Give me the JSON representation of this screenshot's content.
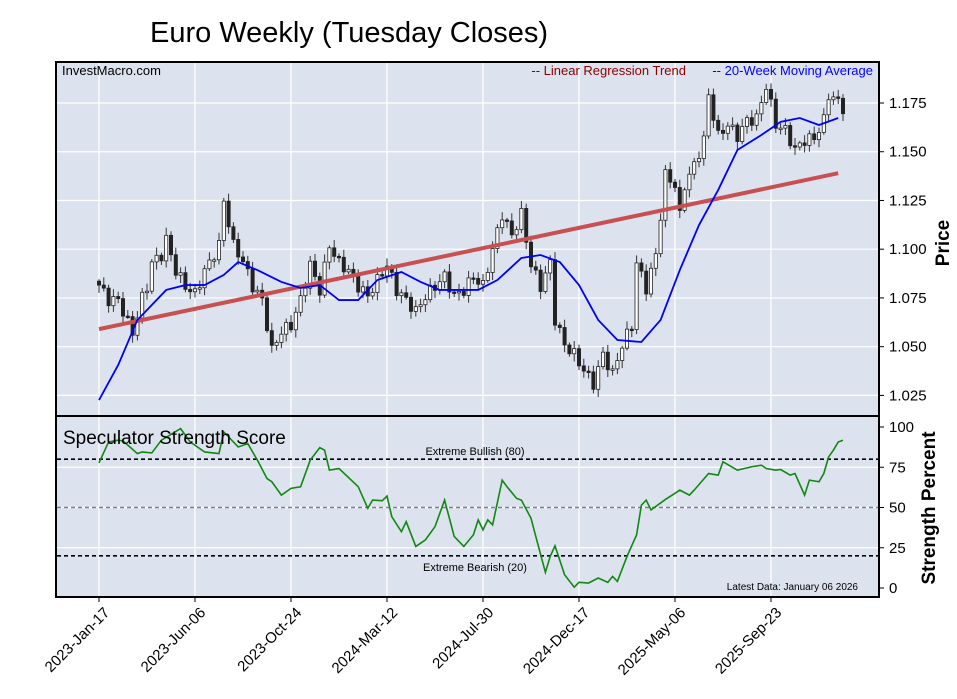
{
  "chart_data": [
    {
      "type": "candlestick",
      "title": "Euro Weekly (Tuesday Closes)",
      "watermark": "InvestMacro.com",
      "ylabel": "Price",
      "ylim": [
        1.015,
        1.195
      ],
      "yticks": [
        "1.175",
        "1.150",
        "1.125",
        "1.100",
        "1.075",
        "1.050",
        "1.025"
      ],
      "xticks": [
        {
          "week": 0,
          "label": "2023-Jan-17"
        },
        {
          "week": 20,
          "label": "2023-Jun-06"
        },
        {
          "week": 40,
          "label": "2023-Oct-24"
        },
        {
          "week": 60,
          "label": "2024-Mar-12"
        },
        {
          "week": 80,
          "label": "2024-Jul-30"
        },
        {
          "week": 100,
          "label": "2024-Dec-17"
        },
        {
          "week": 120,
          "label": "2025-May-06"
        },
        {
          "week": 140,
          "label": "2025-Sep-23"
        }
      ],
      "legend": [
        {
          "label": "-- Linear Regression Trend",
          "color": "#8b0000"
        },
        {
          "label": "-- 20-Week Moving Average",
          "color": "#0000ff"
        }
      ],
      "close_keypoints": [
        [
          0,
          1.0816
        ],
        [
          2,
          1.074
        ],
        [
          4,
          1.074
        ],
        [
          6,
          1.0626
        ],
        [
          7,
          1.057
        ],
        [
          9,
          1.075
        ],
        [
          10,
          1.081
        ],
        [
          11,
          1.093
        ],
        [
          13,
          1.097
        ],
        [
          14,
          1.105
        ],
        [
          16,
          1.089
        ],
        [
          18,
          1.081
        ],
        [
          20,
          1.077
        ],
        [
          22,
          1.089
        ],
        [
          23,
          1.093
        ],
        [
          25,
          1.102
        ],
        [
          26,
          1.125
        ],
        [
          28,
          1.102
        ],
        [
          30,
          1.094
        ],
        [
          32,
          1.081
        ],
        [
          34,
          1.074
        ],
        [
          36,
          1.048
        ],
        [
          38,
          1.058
        ],
        [
          40,
          1.061
        ],
        [
          42,
          1.074
        ],
        [
          44,
          1.092
        ],
        [
          46,
          1.079
        ],
        [
          48,
          1.102
        ],
        [
          50,
          1.093
        ],
        [
          52,
          1.089
        ],
        [
          54,
          1.081
        ],
        [
          56,
          1.076
        ],
        [
          58,
          1.084
        ],
        [
          60,
          1.092
        ],
        [
          62,
          1.079
        ],
        [
          64,
          1.074
        ],
        [
          66,
          1.068
        ],
        [
          68,
          1.076
        ],
        [
          70,
          1.081
        ],
        [
          72,
          1.086
        ],
        [
          74,
          1.076
        ],
        [
          76,
          1.079
        ],
        [
          78,
          1.086
        ],
        [
          80,
          1.081
        ],
        [
          82,
          1.1
        ],
        [
          84,
          1.118
        ],
        [
          86,
          1.107
        ],
        [
          88,
          1.118
        ],
        [
          90,
          1.092
        ],
        [
          92,
          1.081
        ],
        [
          94,
          1.093
        ],
        [
          95,
          1.064
        ],
        [
          97,
          1.051
        ],
        [
          99,
          1.046
        ],
        [
          101,
          1.038
        ],
        [
          103,
          1.031
        ],
        [
          105,
          1.046
        ],
        [
          107,
          1.036
        ],
        [
          109,
          1.051
        ],
        [
          111,
          1.061
        ],
        [
          112,
          1.093
        ],
        [
          114,
          1.08
        ],
        [
          116,
          1.097
        ],
        [
          118,
          1.138
        ],
        [
          120,
          1.133
        ],
        [
          121,
          1.117
        ],
        [
          122,
          1.133
        ],
        [
          124,
          1.143
        ],
        [
          126,
          1.156
        ],
        [
          127,
          1.179
        ],
        [
          129,
          1.158
        ],
        [
          131,
          1.164
        ],
        [
          133,
          1.158
        ],
        [
          135,
          1.166
        ],
        [
          137,
          1.167
        ],
        [
          139,
          1.184
        ],
        [
          141,
          1.164
        ],
        [
          143,
          1.161
        ],
        [
          145,
          1.151
        ],
        [
          147,
          1.156
        ],
        [
          149,
          1.157
        ],
        [
          151,
          1.166
        ],
        [
          152,
          1.179
        ],
        [
          153,
          1.178
        ],
        [
          155,
          1.1725
        ]
      ],
      "moving_average_20w": [
        [
          0,
          1.0226
        ],
        [
          4,
          1.0406
        ],
        [
          8,
          1.0637
        ],
        [
          14,
          1.0791
        ],
        [
          18,
          1.0816
        ],
        [
          22,
          1.0816
        ],
        [
          26,
          1.0868
        ],
        [
          29,
          1.0934
        ],
        [
          33,
          1.0893
        ],
        [
          38,
          1.0832
        ],
        [
          42,
          1.0801
        ],
        [
          46,
          1.0816
        ],
        [
          50,
          1.0739
        ],
        [
          54,
          1.0739
        ],
        [
          58,
          1.0842
        ],
        [
          63,
          1.0883
        ],
        [
          67,
          1.0832
        ],
        [
          71,
          1.0791
        ],
        [
          75,
          1.0791
        ],
        [
          79,
          1.0791
        ],
        [
          83,
          1.0842
        ],
        [
          88,
          1.0955
        ],
        [
          92,
          1.097
        ],
        [
          96,
          1.0934
        ],
        [
          100,
          1.0816
        ],
        [
          104,
          1.0637
        ],
        [
          108,
          1.0534
        ],
        [
          113,
          1.0524
        ],
        [
          117,
          1.0637
        ],
        [
          121,
          1.0893
        ],
        [
          125,
          1.1124
        ],
        [
          129,
          1.1304
        ],
        [
          133,
          1.1509
        ],
        [
          138,
          1.1586
        ],
        [
          142,
          1.1653
        ],
        [
          146,
          1.1673
        ],
        [
          150,
          1.1637
        ],
        [
          154,
          1.1673
        ]
      ],
      "regression_trend": {
        "start_week": 0,
        "start": 1.059,
        "end_week": 154,
        "end": 1.139
      }
    },
    {
      "type": "line",
      "title": "Speculator Strength Score",
      "ylabel": "Strength Percent",
      "ylim": [
        0,
        100
      ],
      "yticks": [
        "100",
        "75",
        "50",
        "25",
        "0"
      ],
      "reference_lines": [
        {
          "value": 80,
          "label": "Extreme Bullish (80)"
        },
        {
          "value": 50,
          "label": ""
        },
        {
          "value": 20,
          "label": "Extreme Bearish (20)"
        }
      ],
      "note": "Latest Data: January 06 2026",
      "points": [
        [
          0,
          77.7
        ],
        [
          2,
          90.7
        ],
        [
          4,
          91.8
        ],
        [
          5,
          91.3
        ],
        [
          8,
          83.5
        ],
        [
          9,
          84.5
        ],
        [
          11,
          83.9
        ],
        [
          13,
          91.8
        ],
        [
          17,
          99
        ],
        [
          19,
          90.7
        ],
        [
          22,
          84.5
        ],
        [
          25,
          83.5
        ],
        [
          26,
          96.9
        ],
        [
          29,
          87.6
        ],
        [
          31,
          89.7
        ],
        [
          33,
          79.4
        ],
        [
          35,
          68
        ],
        [
          36,
          66
        ],
        [
          38,
          57.7
        ],
        [
          40,
          61.9
        ],
        [
          42,
          62.9
        ],
        [
          44,
          79.4
        ],
        [
          46,
          87.2
        ],
        [
          47,
          85.6
        ],
        [
          48,
          73.2
        ],
        [
          50,
          74.2
        ],
        [
          54,
          62.9
        ],
        [
          56,
          49.5
        ],
        [
          57,
          54.6
        ],
        [
          59,
          54.2
        ],
        [
          60,
          57.1
        ],
        [
          61,
          44.3
        ],
        [
          63,
          35
        ],
        [
          64,
          41.2
        ],
        [
          66,
          25.8
        ],
        [
          68,
          29.9
        ],
        [
          70,
          38.1
        ],
        [
          72,
          54.6
        ],
        [
          74,
          32
        ],
        [
          76,
          25.8
        ],
        [
          78,
          33
        ],
        [
          79,
          42.3
        ],
        [
          80,
          36.1
        ],
        [
          81,
          42.3
        ],
        [
          82,
          39.2
        ],
        [
          84,
          67
        ],
        [
          85,
          62.9
        ],
        [
          87,
          55.7
        ],
        [
          88,
          54.6
        ],
        [
          90,
          43.3
        ],
        [
          91,
          32
        ],
        [
          93,
          9.7
        ],
        [
          94,
          19.6
        ],
        [
          95,
          26.2
        ],
        [
          97,
          8.2
        ],
        [
          99,
          0.5
        ],
        [
          100,
          3.5
        ],
        [
          102,
          3.1
        ],
        [
          104,
          6.2
        ],
        [
          106,
          3.5
        ],
        [
          107,
          7.2
        ],
        [
          108,
          4.1
        ],
        [
          110,
          19.6
        ],
        [
          112,
          33
        ],
        [
          113,
          51.5
        ],
        [
          114,
          54.6
        ],
        [
          115,
          48.5
        ],
        [
          118,
          55
        ],
        [
          120,
          58.8
        ],
        [
          121,
          60.8
        ],
        [
          123,
          57.7
        ],
        [
          124,
          60.8
        ],
        [
          127,
          71.1
        ],
        [
          129,
          70.1
        ],
        [
          130,
          78.4
        ],
        [
          133,
          73.2
        ],
        [
          136,
          75.3
        ],
        [
          138,
          76.3
        ],
        [
          139,
          74.2
        ],
        [
          141,
          73.2
        ],
        [
          142,
          73.6
        ],
        [
          144,
          70.1
        ],
        [
          145,
          71.1
        ],
        [
          147,
          57.7
        ],
        [
          148,
          67
        ],
        [
          150,
          66
        ],
        [
          151,
          71.1
        ],
        [
          152,
          81.4
        ],
        [
          153,
          85.6
        ],
        [
          154,
          90.7
        ],
        [
          155,
          91.8
        ]
      ]
    }
  ]
}
